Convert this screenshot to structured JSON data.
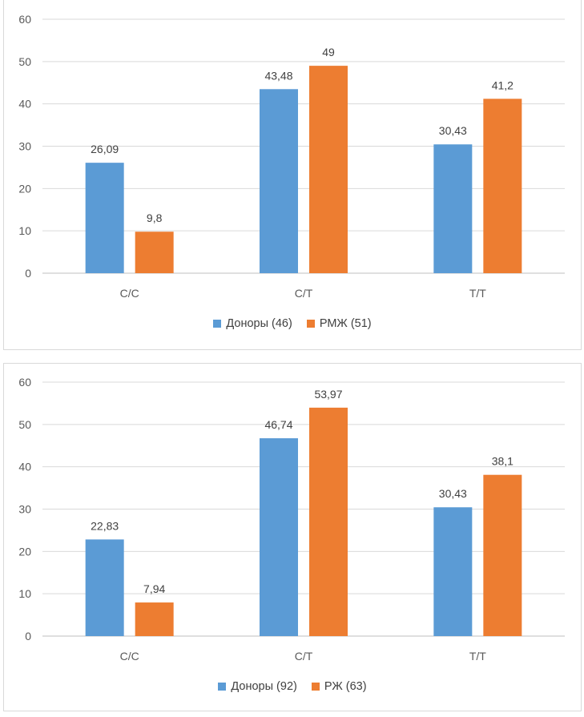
{
  "chart_data": [
    {
      "type": "bar",
      "categories": [
        "C/C",
        "C/T",
        "T/T"
      ],
      "ylim": [
        0,
        60
      ],
      "yticks": [
        0,
        10,
        20,
        30,
        40,
        50,
        60
      ],
      "grid": true,
      "legend_position": "bottom",
      "series": [
        {
          "name": "Доноры (46)",
          "values": [
            26.09,
            43.48,
            30.43
          ],
          "labels": [
            "26,09",
            "43,48",
            "30,43"
          ],
          "color": "#5b9bd5"
        },
        {
          "name": "РМЖ (51)",
          "values": [
            9.8,
            49,
            41.2
          ],
          "labels": [
            "9,8",
            "49",
            "41,2"
          ],
          "color": "#ed7d31"
        }
      ]
    },
    {
      "type": "bar",
      "categories": [
        "C/C",
        "C/T",
        "T/T"
      ],
      "ylim": [
        0,
        60
      ],
      "yticks": [
        0,
        10,
        20,
        30,
        40,
        50,
        60
      ],
      "grid": true,
      "legend_position": "bottom",
      "series": [
        {
          "name": "Доноры (92)",
          "values": [
            22.83,
            46.74,
            30.43
          ],
          "labels": [
            "22,83",
            "46,74",
            "30,43"
          ],
          "color": "#5b9bd5"
        },
        {
          "name": "РЖ (63)",
          "values": [
            7.94,
            53.97,
            38.1
          ],
          "labels": [
            "7,94",
            "53,97",
            "38,1"
          ],
          "color": "#ed7d31"
        }
      ]
    }
  ]
}
